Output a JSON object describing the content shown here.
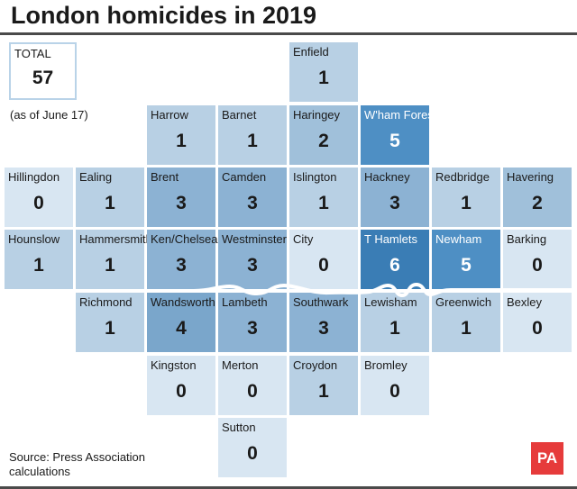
{
  "title": "London homicides in 2019",
  "total": {
    "label": "TOTAL",
    "value": "57"
  },
  "as_of": "(as of June 17)",
  "tiles": [
    {
      "name": "Enfield",
      "value": "1"
    },
    {
      "name": "Harrow",
      "value": "1"
    },
    {
      "name": "Barnet",
      "value": "1"
    },
    {
      "name": "Haringey",
      "value": "2"
    },
    {
      "name": "W'ham Forest",
      "value": "5"
    },
    {
      "name": "Hillingdon",
      "value": "0"
    },
    {
      "name": "Ealing",
      "value": "1"
    },
    {
      "name": "Brent",
      "value": "3"
    },
    {
      "name": "Camden",
      "value": "3"
    },
    {
      "name": "Islington",
      "value": "1"
    },
    {
      "name": "Hackney",
      "value": "3"
    },
    {
      "name": "Redbridge",
      "value": "1"
    },
    {
      "name": "Havering",
      "value": "2"
    },
    {
      "name": "Hounslow",
      "value": "1"
    },
    {
      "name": "Hammersmith",
      "value": "1"
    },
    {
      "name": "Ken/Chelsea",
      "value": "3"
    },
    {
      "name": "Westminster",
      "value": "3"
    },
    {
      "name": "City",
      "value": "0"
    },
    {
      "name": "T Hamlets",
      "value": "6"
    },
    {
      "name": "Newham",
      "value": "5"
    },
    {
      "name": "Barking",
      "value": "0"
    },
    {
      "name": "Richmond",
      "value": "1"
    },
    {
      "name": "Wandsworth",
      "value": "4"
    },
    {
      "name": "Lambeth",
      "value": "3"
    },
    {
      "name": "Southwark",
      "value": "3"
    },
    {
      "name": "Lewisham",
      "value": "1"
    },
    {
      "name": "Greenwich",
      "value": "1"
    },
    {
      "name": "Bexley",
      "value": "0"
    },
    {
      "name": "Kingston",
      "value": "0"
    },
    {
      "name": "Merton",
      "value": "0"
    },
    {
      "name": "Croydon",
      "value": "1"
    },
    {
      "name": "Bromley",
      "value": "0"
    },
    {
      "name": "Sutton",
      "value": "0"
    }
  ],
  "source": {
    "line1": "Source: Press Association",
    "line2": "calculations"
  },
  "logo_text": "PA"
}
